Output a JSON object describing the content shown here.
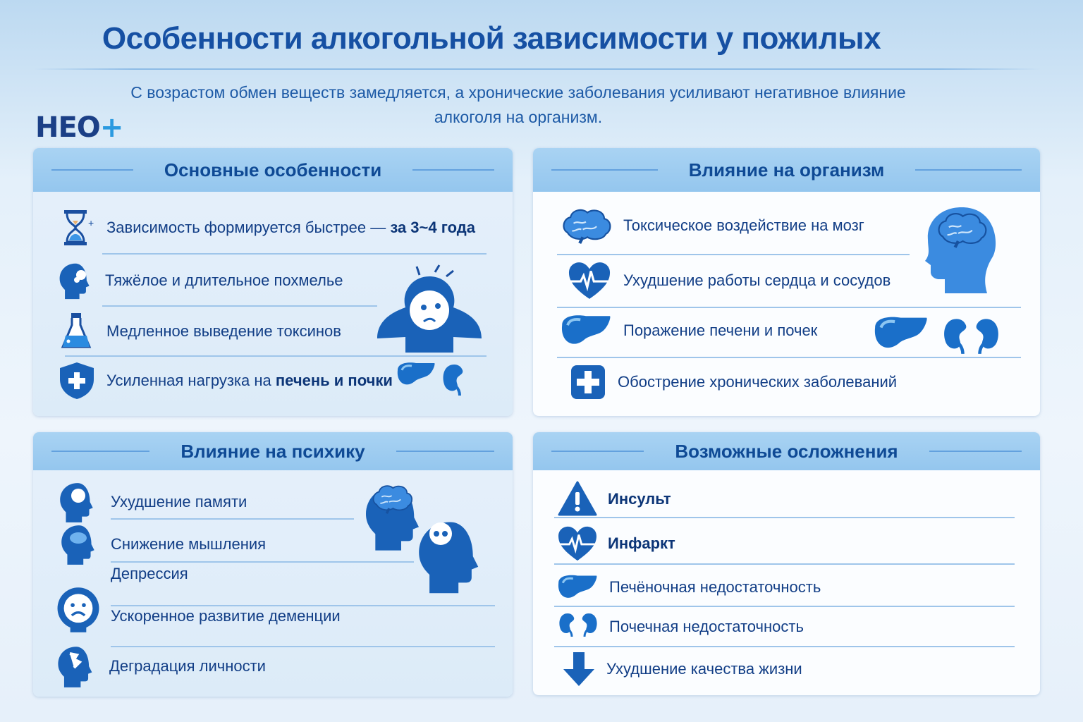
{
  "header": {
    "title": "Особенности алкогольной зависимости у пожилых",
    "subtitle_line1": "С возрастом обмен веществ замедляется, а хронические заболевания усиливают негативное влияние",
    "subtitle_line2": "алкоголя на организм.",
    "logo": "НЕО+"
  },
  "colors": {
    "accent": "#1a6fc9",
    "dark": "#0f4a95",
    "header_band": "#a9d3f3"
  },
  "panels": {
    "features": {
      "title": "Основные особенности",
      "items": [
        {
          "icon": "hourglass-icon",
          "text": "Зависимость формируется быстрее — ",
          "bold": "за 3~4 года"
        },
        {
          "icon": "head-icon",
          "text": "Тяжёлое и длительное похмелье",
          "bold": ""
        },
        {
          "icon": "flask-icon",
          "text": "Медленное выведение токсинов",
          "bold": ""
        },
        {
          "icon": "shield-plus-icon",
          "text": "Усиленная нагрузка на ",
          "bold": "печень и почки"
        }
      ]
    },
    "body": {
      "title": "Влияние на организм",
      "items": [
        {
          "icon": "brain-icon",
          "text": "Токсическое воздействие на мозг"
        },
        {
          "icon": "heart-pulse-icon",
          "text": "Ухудшение работы сердца и сосудов"
        },
        {
          "icon": "liver-icon",
          "text": "Поражение печени и почек"
        },
        {
          "icon": "medical-cross-icon",
          "text": "Обострение хронических заболеваний"
        }
      ]
    },
    "psyche": {
      "title": "Влияние на психику",
      "items": [
        {
          "icon": "head-memory-icon",
          "text": "Ухудшение памяти"
        },
        {
          "icon": "head-thinking-icon",
          "text": "Снижение мышления"
        },
        {
          "icon": "sad-face-icon",
          "text": "Депрессия"
        },
        {
          "icon": "sad-face-icon",
          "text": "Ускоренное развитие деменции"
        },
        {
          "icon": "head-broken-icon",
          "text": "Деградация личности"
        }
      ]
    },
    "complications": {
      "title": "Возможные осложнения",
      "items": [
        {
          "icon": "warning-icon",
          "text": "Инсульт",
          "bold": true
        },
        {
          "icon": "heart-pulse-icon",
          "text": "Инфаркт",
          "bold": true
        },
        {
          "icon": "liver-icon",
          "text": "Печёночная недостаточность",
          "bold": false
        },
        {
          "icon": "kidneys-icon",
          "text": "Почечная недостаточность",
          "bold": false
        },
        {
          "icon": "arrow-down-icon",
          "text": "Ухудшение качества жизни",
          "bold": false
        }
      ]
    }
  }
}
